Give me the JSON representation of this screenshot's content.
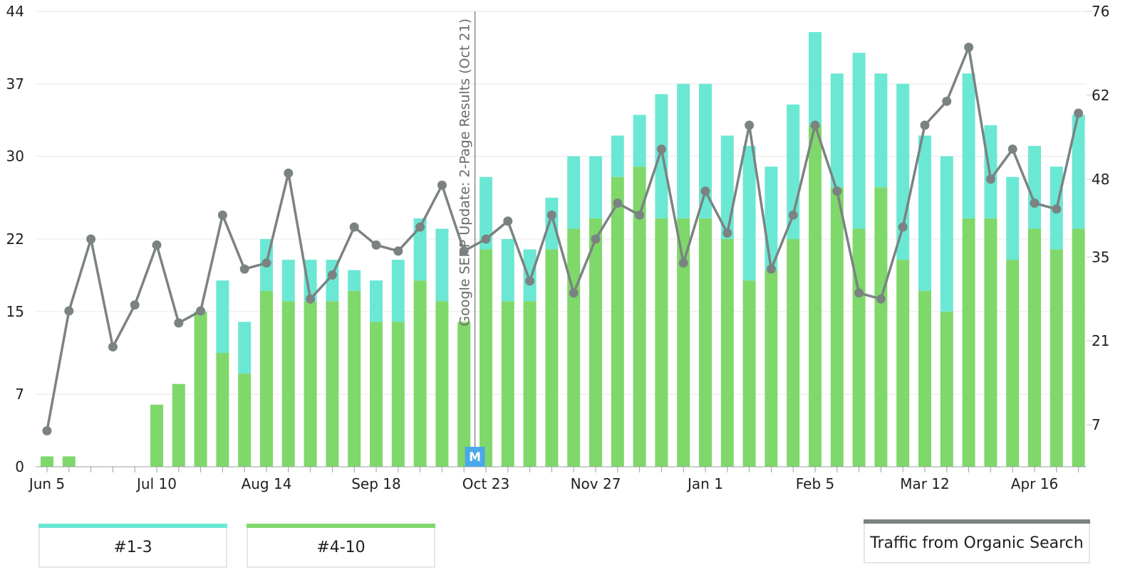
{
  "chart_data": {
    "type": "bar",
    "stacked": true,
    "x_tick_labels": [
      "Jun 5",
      "Jul 10",
      "Aug 14",
      "Sep 18",
      "Oct 23",
      "Nov 27",
      "Jan 1",
      "Feb 5",
      "Mar 12",
      "Apr 16"
    ],
    "x_tick_label_index": [
      0,
      5,
      10,
      15,
      20,
      25,
      30,
      35,
      40,
      45
    ],
    "week_count": 48,
    "y_left_ticks": [
      "0",
      "7",
      "15",
      "22",
      "30",
      "37",
      "44"
    ],
    "y_left_range": [
      0,
      44
    ],
    "y_right_ticks": [
      "7",
      "21",
      "35",
      "48",
      "62",
      "76"
    ],
    "y_right_range": [
      0,
      76
    ],
    "grid": true,
    "series": [
      {
        "name": "#4-10",
        "color": "#7fd86a",
        "axis": "left",
        "values": [
          1,
          1,
          0,
          0,
          0,
          6,
          8,
          15,
          11,
          9,
          17,
          16,
          16,
          16,
          17,
          14,
          14,
          18,
          16,
          14,
          21,
          16,
          16,
          21,
          23,
          24,
          28,
          29,
          24,
          24,
          24,
          22,
          18,
          19,
          22,
          33,
          27,
          23,
          27,
          20,
          17,
          15,
          24,
          24,
          20,
          23,
          21,
          23
        ]
      },
      {
        "name": "#1-3",
        "color": "#6be8d4",
        "axis": "left",
        "values": [
          0,
          0,
          0,
          0,
          0,
          0,
          0,
          0,
          7,
          5,
          5,
          4,
          4,
          4,
          2,
          4,
          6,
          6,
          7,
          0,
          7,
          6,
          5,
          5,
          7,
          6,
          4,
          5,
          12,
          13,
          13,
          10,
          13,
          10,
          13,
          9,
          11,
          17,
          11,
          17,
          15,
          15,
          14,
          9,
          8,
          8,
          8,
          11
        ]
      },
      {
        "name": "Traffic from Organic Search",
        "color": "#7b8382",
        "axis": "right",
        "type": "line",
        "values": [
          6,
          26,
          38,
          20,
          27,
          37,
          24,
          26,
          42,
          33,
          34,
          49,
          28,
          32,
          40,
          37,
          36,
          40,
          47,
          36,
          38,
          41,
          31,
          42,
          29,
          38,
          44,
          42,
          53,
          34,
          46,
          39,
          57,
          33,
          42,
          57,
          46,
          29,
          28,
          40,
          57,
          61,
          70,
          48,
          53,
          44,
          43,
          59
        ]
      }
    ],
    "annotations": [
      {
        "text": "Google SERP Update: 2-Page Results (Oct 21)",
        "at_index": 19.5,
        "marker": "M",
        "marker_color": "#4aa8e8"
      }
    ]
  },
  "legend": [
    {
      "label": "#1-3",
      "color": "#6be8d4"
    },
    {
      "label": "#4-10",
      "color": "#7fd86a"
    },
    {
      "label": "Traffic from Organic Search",
      "color": "#7b8382"
    }
  ]
}
